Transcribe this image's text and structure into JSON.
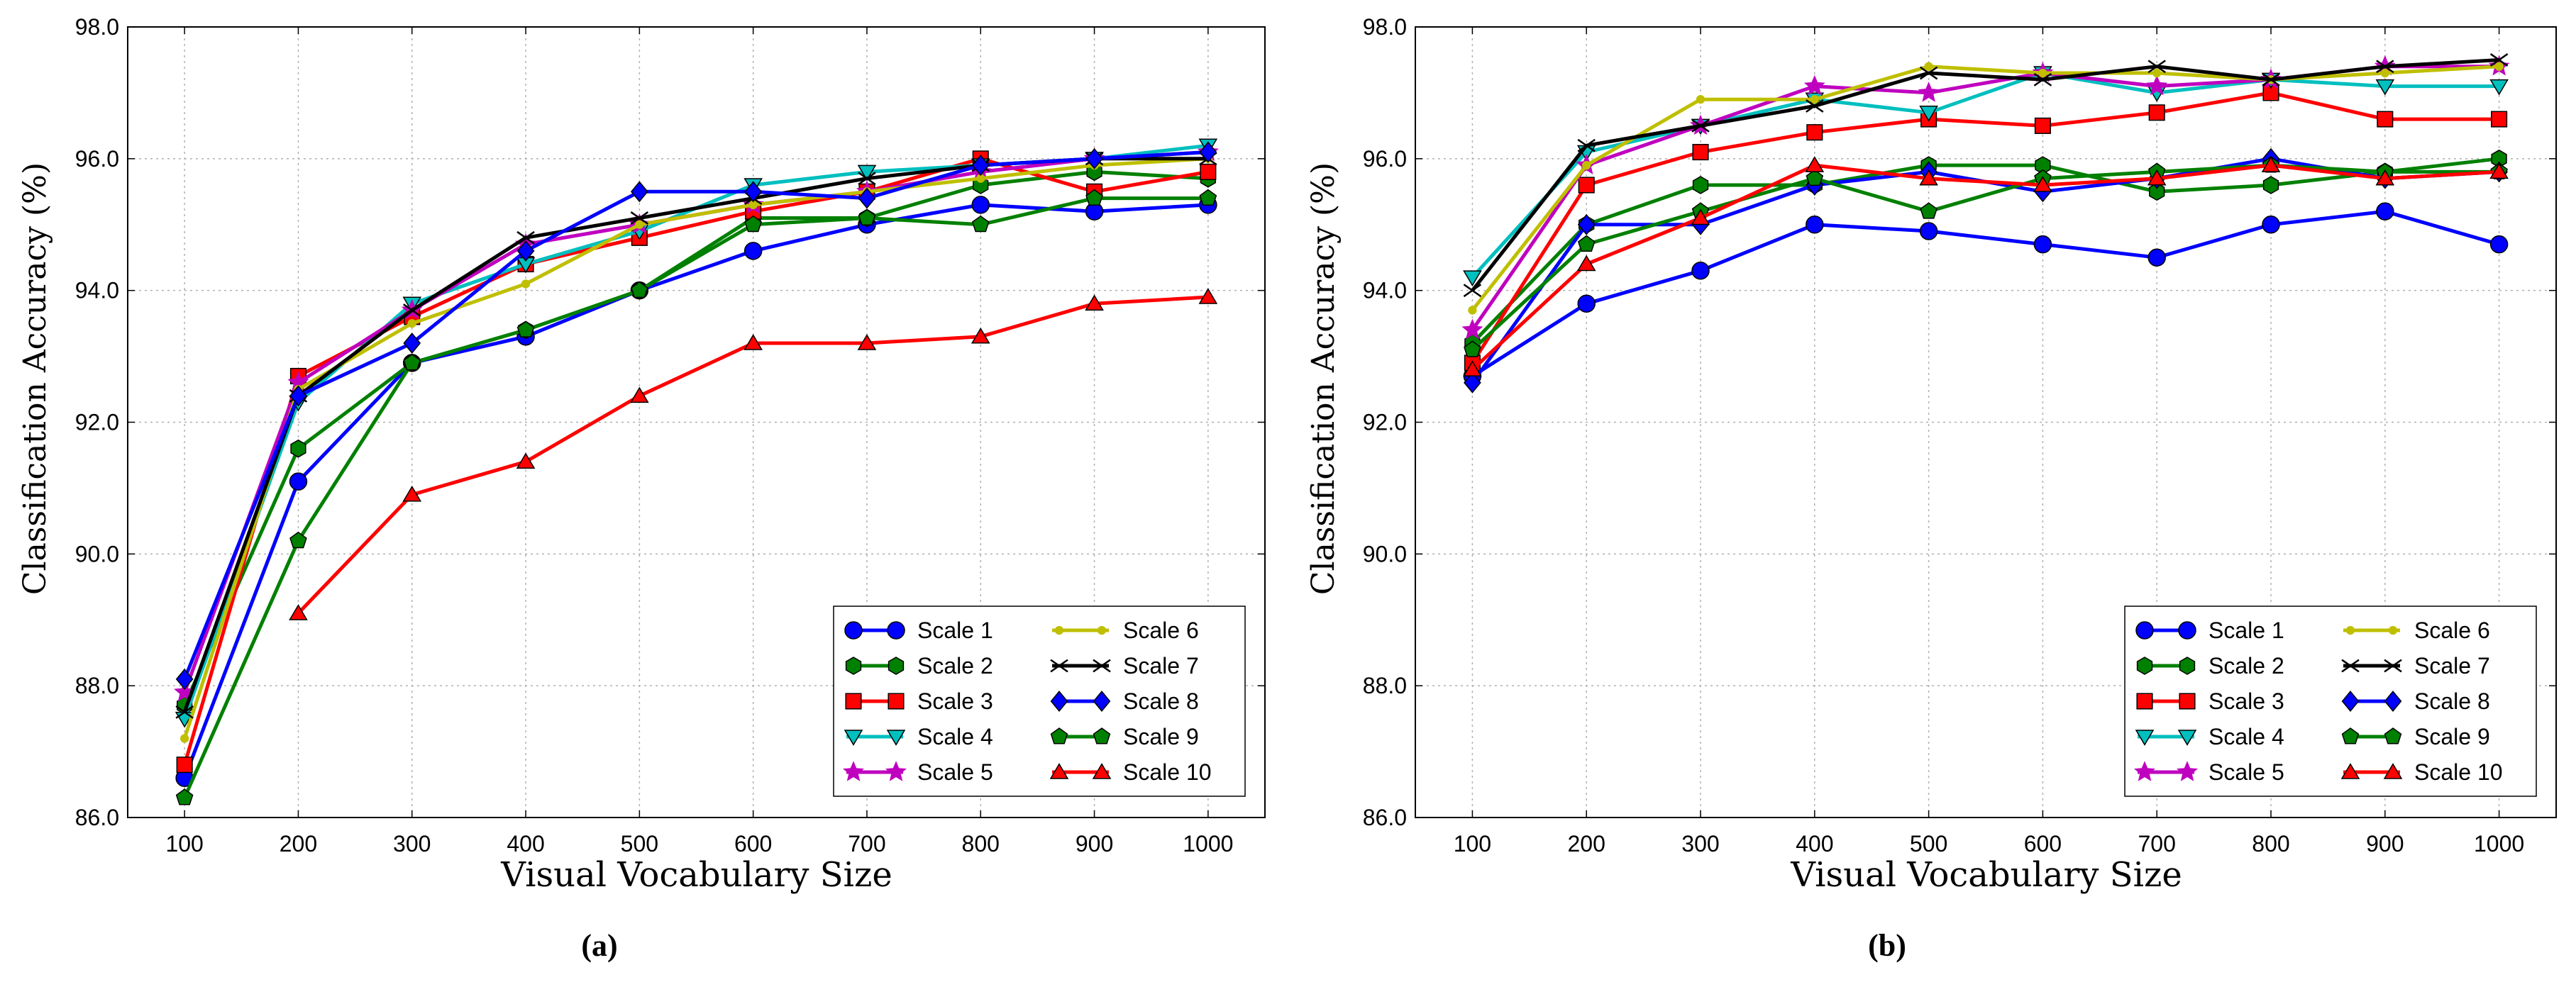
{
  "chart_data": [
    {
      "type": "line",
      "caption": "(a)",
      "xlabel": "Visual Vocabulary Size",
      "ylabel": "Classification Accuracy (%)",
      "x": [
        100,
        200,
        300,
        400,
        500,
        600,
        700,
        800,
        900,
        1000
      ],
      "xlim": [
        50,
        1050
      ],
      "ylim": [
        86.0,
        98.0
      ],
      "yticks": [
        "86.0",
        "88.0",
        "90.0",
        "92.0",
        "94.0",
        "96.0",
        "98.0"
      ],
      "xticks": [
        "100",
        "200",
        "300",
        "400",
        "500",
        "600",
        "700",
        "800",
        "900",
        "1000"
      ],
      "grid": true,
      "legend_position": "lower-right",
      "series": [
        {
          "name": "Scale 1",
          "color": "#0000ff",
          "marker": "circle",
          "values": [
            86.6,
            91.1,
            92.9,
            93.3,
            94.0,
            94.6,
            95.0,
            95.3,
            95.2,
            95.3
          ]
        },
        {
          "name": "Scale 2",
          "color": "#008000",
          "marker": "hexagon",
          "values": [
            87.7,
            91.6,
            92.9,
            93.4,
            94.0,
            95.1,
            95.1,
            95.6,
            95.8,
            95.7
          ]
        },
        {
          "name": "Scale 3",
          "color": "#ff0000",
          "marker": "square",
          "values": [
            86.8,
            92.7,
            93.6,
            94.4,
            94.8,
            95.2,
            95.5,
            96.0,
            95.5,
            95.8
          ]
        },
        {
          "name": "Scale 4",
          "color": "#00bfbf",
          "marker": "triangle-down",
          "values": [
            87.5,
            92.3,
            93.8,
            94.4,
            94.9,
            95.6,
            95.8,
            95.9,
            96.0,
            96.2
          ]
        },
        {
          "name": "Scale 5",
          "color": "#bf00bf",
          "marker": "star",
          "values": [
            87.9,
            92.6,
            93.7,
            94.7,
            95.0,
            95.3,
            95.5,
            95.8,
            96.0,
            96.1
          ]
        },
        {
          "name": "Scale 6",
          "color": "#bfbf00",
          "marker": "small-circle",
          "values": [
            87.2,
            92.5,
            93.5,
            94.1,
            95.0,
            95.3,
            95.5,
            95.7,
            95.9,
            96.0
          ]
        },
        {
          "name": "Scale 7",
          "color": "#000000",
          "marker": "x",
          "values": [
            87.6,
            92.4,
            93.7,
            94.8,
            95.1,
            95.4,
            95.7,
            95.9,
            96.0,
            96.0
          ]
        },
        {
          "name": "Scale 8",
          "color": "#0000ff",
          "marker": "diamond",
          "values": [
            88.1,
            92.4,
            93.2,
            94.6,
            95.5,
            95.5,
            95.4,
            95.9,
            96.0,
            96.1
          ]
        },
        {
          "name": "Scale 9",
          "color": "#008000",
          "marker": "pentagon",
          "values": [
            86.3,
            90.2,
            92.9,
            93.4,
            94.0,
            95.0,
            95.1,
            95.0,
            95.4,
            95.4
          ]
        },
        {
          "name": "Scale 10",
          "color": "#ff0000",
          "marker": "triangle-up",
          "values": [
            null,
            89.1,
            90.9,
            91.4,
            92.4,
            93.2,
            93.2,
            93.3,
            93.8,
            93.9
          ]
        }
      ]
    },
    {
      "type": "line",
      "caption": "(b)",
      "xlabel": "Visual Vocabulary Size",
      "ylabel": "Classification Accuracy (%)",
      "x": [
        100,
        200,
        300,
        400,
        500,
        600,
        700,
        800,
        900,
        1000
      ],
      "xlim": [
        50,
        1050
      ],
      "ylim": [
        86.0,
        98.0
      ],
      "yticks": [
        "86.0",
        "88.0",
        "90.0",
        "92.0",
        "94.0",
        "96.0",
        "98.0"
      ],
      "xticks": [
        "100",
        "200",
        "300",
        "400",
        "500",
        "600",
        "700",
        "800",
        "900",
        "1000"
      ],
      "grid": true,
      "legend_position": "lower-right",
      "series": [
        {
          "name": "Scale 1",
          "color": "#0000ff",
          "marker": "circle",
          "values": [
            92.7,
            93.8,
            94.3,
            95.0,
            94.9,
            94.7,
            94.5,
            95.0,
            95.2,
            94.7
          ]
        },
        {
          "name": "Scale 2",
          "color": "#008000",
          "marker": "hexagon",
          "values": [
            93.2,
            95.0,
            95.6,
            95.6,
            95.9,
            95.9,
            95.5,
            95.6,
            95.8,
            96.0
          ]
        },
        {
          "name": "Scale 3",
          "color": "#ff0000",
          "marker": "square",
          "values": [
            92.9,
            95.6,
            96.1,
            96.4,
            96.6,
            96.5,
            96.7,
            97.0,
            96.6,
            96.6
          ]
        },
        {
          "name": "Scale 4",
          "color": "#00bfbf",
          "marker": "triangle-down",
          "values": [
            94.2,
            96.1,
            96.5,
            96.9,
            96.7,
            97.3,
            97.0,
            97.2,
            97.1,
            97.1
          ]
        },
        {
          "name": "Scale 5",
          "color": "#bf00bf",
          "marker": "star",
          "values": [
            93.4,
            95.9,
            96.5,
            97.1,
            97.0,
            97.3,
            97.1,
            97.2,
            97.4,
            97.4
          ]
        },
        {
          "name": "Scale 6",
          "color": "#bfbf00",
          "marker": "small-circle",
          "values": [
            93.7,
            95.9,
            96.9,
            96.9,
            97.4,
            97.3,
            97.3,
            97.2,
            97.3,
            97.4
          ]
        },
        {
          "name": "Scale 7",
          "color": "#000000",
          "marker": "x",
          "values": [
            94.0,
            96.2,
            96.5,
            96.8,
            97.3,
            97.2,
            97.4,
            97.2,
            97.4,
            97.5
          ]
        },
        {
          "name": "Scale 8",
          "color": "#0000ff",
          "marker": "diamond",
          "values": [
            92.6,
            95.0,
            95.0,
            95.6,
            95.8,
            95.5,
            95.7,
            96.0,
            95.7,
            95.8
          ]
        },
        {
          "name": "Scale 9",
          "color": "#008000",
          "marker": "pentagon",
          "values": [
            93.1,
            94.7,
            95.2,
            95.7,
            95.2,
            95.7,
            95.8,
            95.9,
            95.8,
            95.8
          ]
        },
        {
          "name": "Scale 10",
          "color": "#ff0000",
          "marker": "triangle-up",
          "values": [
            92.8,
            94.4,
            95.1,
            95.9,
            95.7,
            95.6,
            95.7,
            95.9,
            95.7,
            95.8
          ]
        }
      ]
    }
  ]
}
